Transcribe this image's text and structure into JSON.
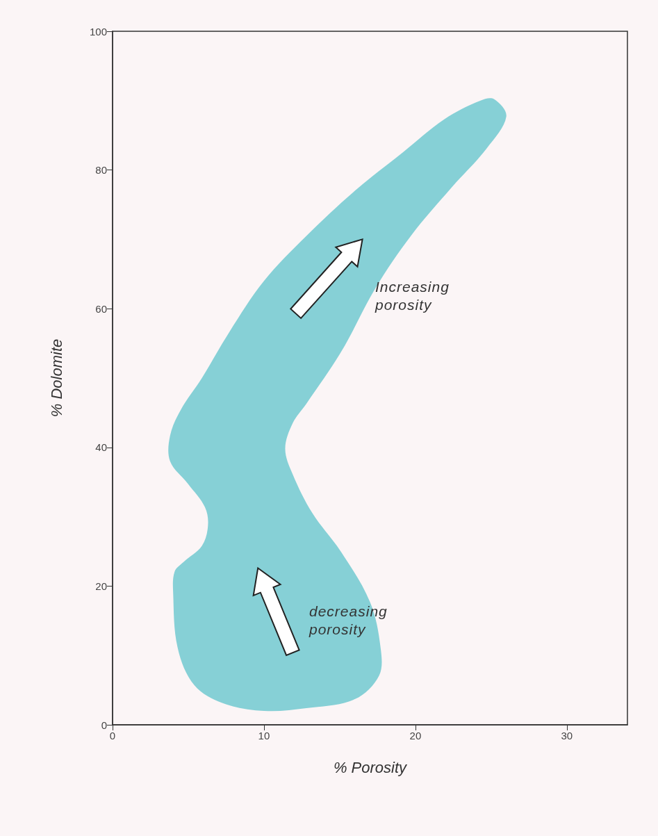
{
  "chart_data": {
    "type": "area",
    "xlabel": "% Porosity",
    "ylabel": "% Dolomite",
    "xlim": [
      0,
      34
    ],
    "xticks": [
      0,
      10,
      20,
      30
    ],
    "ylim": [
      0,
      100
    ],
    "yticks": [
      0,
      20,
      40,
      60,
      80,
      100
    ],
    "grid": false,
    "series": [
      {
        "color": "#86d0d6",
        "x": [
          25.2,
          26.0,
          24.7,
          22.4,
          19.7,
          17.4,
          15.1,
          12.8,
          11.9,
          11.4,
          11.9,
          13.2,
          15.1,
          17.0,
          17.7,
          17.6,
          16.0,
          12.8,
          10.0,
          7.3,
          5.4,
          4.3,
          4.0,
          4.1,
          4.7,
          5.9,
          6.3,
          6.1,
          5.0,
          3.8,
          3.8,
          4.5,
          5.9,
          7.7,
          10.0,
          12.8,
          16.0,
          19.2,
          21.9,
          24.3
        ],
        "values": [
          90.2,
          87.7,
          83.1,
          77.5,
          70.5,
          63.1,
          53.8,
          46.3,
          43.5,
          39.8,
          36.1,
          30.5,
          24.9,
          17.7,
          11.1,
          7.1,
          3.7,
          2.4,
          2.0,
          3.1,
          5.7,
          11.1,
          19.1,
          22.1,
          23.5,
          25.8,
          28.7,
          31.4,
          34.7,
          38.0,
          41.7,
          45.4,
          50.0,
          56.6,
          64.0,
          70.5,
          77.0,
          82.6,
          87.3,
          90.0
        ]
      }
    ],
    "annotations": [
      "Increasing porosity",
      "decreasing porosity"
    ]
  }
}
